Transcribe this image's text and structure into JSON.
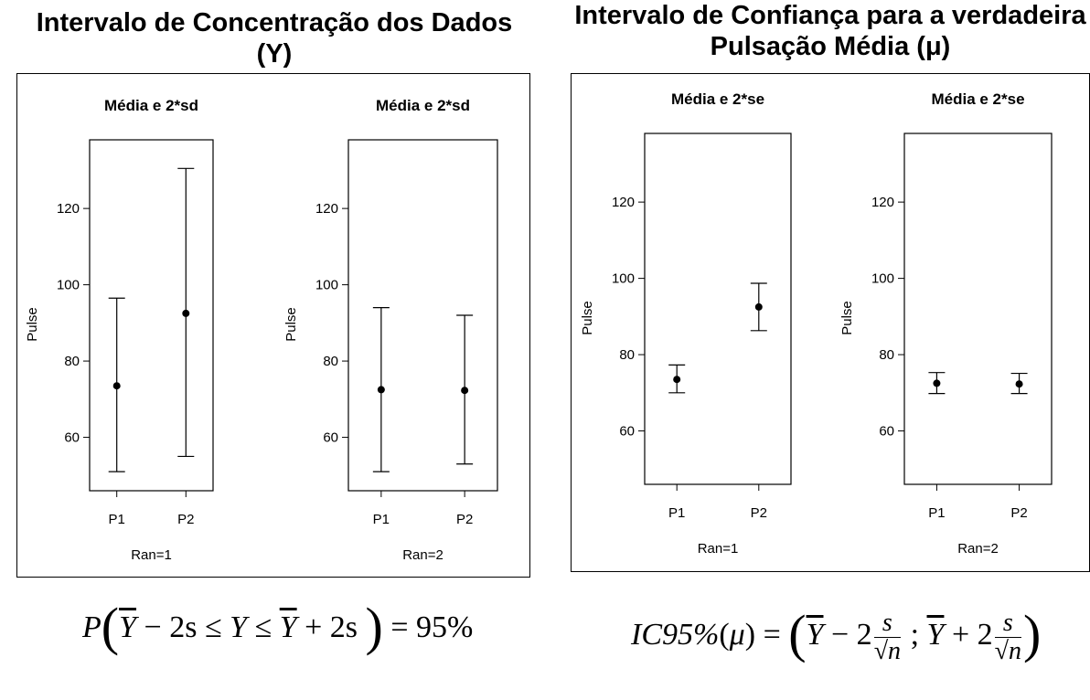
{
  "titles": {
    "left": "Intervalo de Concentração dos Dados (Y)",
    "right": "Intervalo de Confiança para a verdadeira Pulsação Média (μ)"
  },
  "formulas": {
    "left": {
      "p": "P",
      "ybar": "Y",
      "minus2s": " − 2s  ≤ ",
      "y": "Y",
      "le": " ≤ ",
      "ybar2": "Y",
      "plus2s": " + 2s ",
      "eq": " = 95%"
    },
    "right": {
      "ic": "IC95%",
      "mu": "μ",
      "eq": " = ",
      "ybar": "Y",
      "minus2": " − 2",
      "s": "s",
      "sqrt_n": "√n",
      "sep": " ; ",
      "ybar2": "Y",
      "plus2": " + 2"
    }
  },
  "chart_data": [
    {
      "type": "scatter",
      "title": "Média e 2*sd",
      "xlabel": "Ran=1",
      "ylabel": "Pulse",
      "categories": [
        "P1",
        "P2"
      ],
      "mean": [
        73.5,
        92.5
      ],
      "lower": [
        51,
        55
      ],
      "upper": [
        96.5,
        130.5
      ],
      "ylim": [
        46,
        138
      ],
      "yticks": [
        60,
        80,
        100,
        120
      ],
      "grid": false
    },
    {
      "type": "scatter",
      "title": "Média e 2*sd",
      "xlabel": "Ran=2",
      "ylabel": "Pulse",
      "categories": [
        "P1",
        "P2"
      ],
      "mean": [
        72.5,
        72.3
      ],
      "lower": [
        51,
        53
      ],
      "upper": [
        94,
        92
      ],
      "ylim": [
        46,
        138
      ],
      "yticks": [
        60,
        80,
        100,
        120
      ],
      "grid": false
    },
    {
      "type": "scatter",
      "title": "Média e 2*se",
      "xlabel": "Ran=1",
      "ylabel": "Pulse",
      "categories": [
        "P1",
        "P2"
      ],
      "mean": [
        73.5,
        92.5
      ],
      "lower": [
        70,
        86.3
      ],
      "upper": [
        77.3,
        98.7
      ],
      "ylim": [
        46,
        138
      ],
      "yticks": [
        60,
        80,
        100,
        120
      ],
      "grid": false
    },
    {
      "type": "scatter",
      "title": "Média e 2*se",
      "xlabel": "Ran=2",
      "ylabel": "Pulse",
      "categories": [
        "P1",
        "P2"
      ],
      "mean": [
        72.5,
        72.3
      ],
      "lower": [
        69.8,
        69.8
      ],
      "upper": [
        75.3,
        75.1
      ],
      "ylim": [
        46,
        138
      ],
      "yticks": [
        60,
        80,
        100,
        120
      ],
      "grid": false
    }
  ]
}
